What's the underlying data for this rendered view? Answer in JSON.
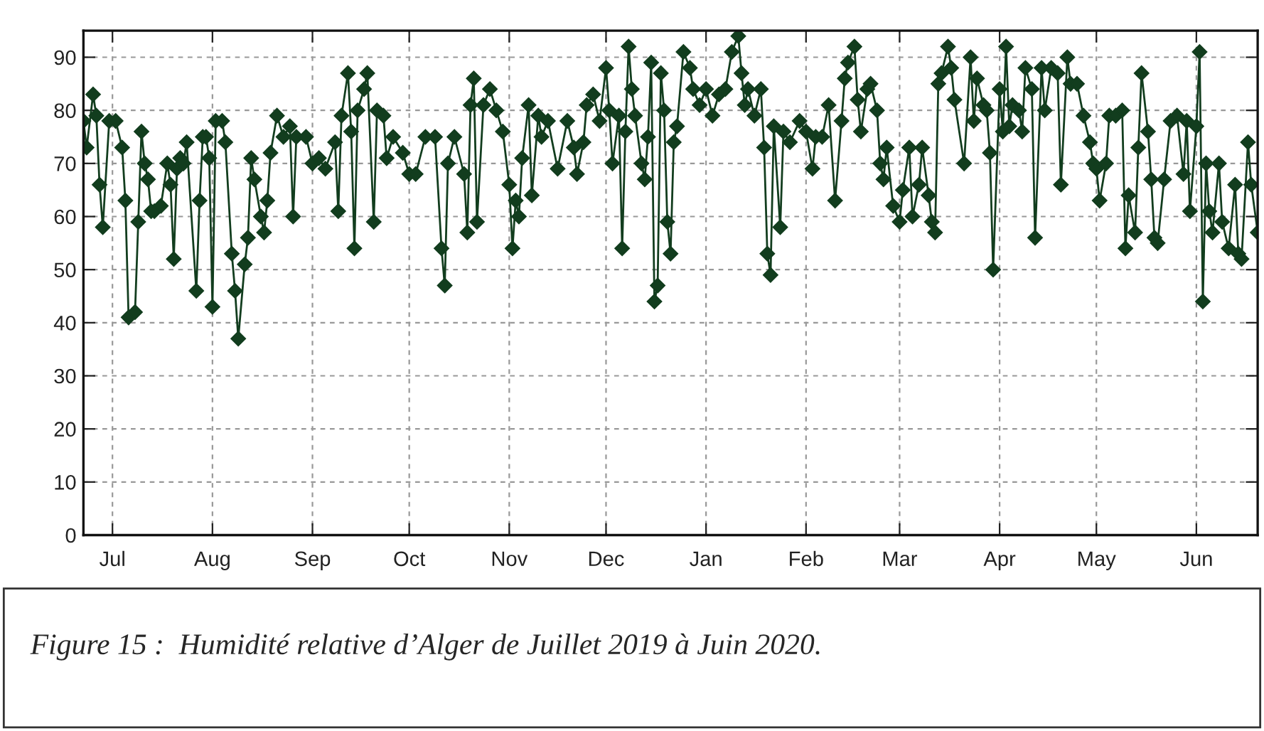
{
  "chart_data": {
    "type": "line",
    "x": [
      "2019-06-22",
      "2019-06-23",
      "2019-06-25",
      "2019-06-26",
      "2019-06-27",
      "2019-06-28",
      "2019-06-30",
      "2019-07-02",
      "2019-07-04",
      "2019-07-05",
      "2019-07-06",
      "2019-07-08",
      "2019-07-09",
      "2019-07-10",
      "2019-07-11",
      "2019-07-12",
      "2019-07-13",
      "2019-07-14",
      "2019-07-16",
      "2019-07-18",
      "2019-07-19",
      "2019-07-20",
      "2019-07-21",
      "2019-07-22",
      "2019-07-23",
      "2019-07-24",
      "2019-07-27",
      "2019-07-28",
      "2019-07-29",
      "2019-07-30",
      "2019-07-31",
      "2019-08-01",
      "2019-08-02",
      "2019-08-04",
      "2019-08-05",
      "2019-08-07",
      "2019-08-08",
      "2019-08-09",
      "2019-08-11",
      "2019-08-12",
      "2019-08-13",
      "2019-08-14",
      "2019-08-16",
      "2019-08-17",
      "2019-08-18",
      "2019-08-19",
      "2019-08-21",
      "2019-08-23",
      "2019-08-25",
      "2019-08-26",
      "2019-08-27",
      "2019-08-30",
      "2019-09-01",
      "2019-09-03",
      "2019-09-05",
      "2019-09-08",
      "2019-09-09",
      "2019-09-10",
      "2019-09-12",
      "2019-09-13",
      "2019-09-14",
      "2019-09-15",
      "2019-09-17",
      "2019-09-18",
      "2019-09-20",
      "2019-09-21",
      "2019-09-23",
      "2019-09-24",
      "2019-09-26",
      "2019-09-29",
      "2019-10-01",
      "2019-10-03",
      "2019-10-06",
      "2019-10-09",
      "2019-10-11",
      "2019-10-12",
      "2019-10-13",
      "2019-10-15",
      "2019-10-18",
      "2019-10-19",
      "2019-10-20",
      "2019-10-21",
      "2019-10-22",
      "2019-10-24",
      "2019-10-26",
      "2019-10-28",
      "2019-10-30",
      "2019-11-01",
      "2019-11-02",
      "2019-11-03",
      "2019-11-04",
      "2019-11-05",
      "2019-11-07",
      "2019-11-08",
      "2019-11-10",
      "2019-11-11",
      "2019-11-13",
      "2019-11-16",
      "2019-11-19",
      "2019-11-21",
      "2019-11-22",
      "2019-11-24",
      "2019-11-25",
      "2019-11-27",
      "2019-11-29",
      "2019-12-01",
      "2019-12-02",
      "2019-12-03",
      "2019-12-05",
      "2019-12-06",
      "2019-12-07",
      "2019-12-08",
      "2019-12-09",
      "2019-12-10",
      "2019-12-12",
      "2019-12-13",
      "2019-12-14",
      "2019-12-15",
      "2019-12-16",
      "2019-12-17",
      "2019-12-18",
      "2019-12-19",
      "2019-12-20",
      "2019-12-21",
      "2019-12-22",
      "2019-12-23",
      "2019-12-25",
      "2019-12-27",
      "2019-12-28",
      "2019-12-30",
      "2020-01-01",
      "2020-01-03",
      "2020-01-05",
      "2020-01-07",
      "2020-01-09",
      "2020-01-11",
      "2020-01-12",
      "2020-01-13",
      "2020-01-14",
      "2020-01-16",
      "2020-01-18",
      "2020-01-19",
      "2020-01-20",
      "2020-01-21",
      "2020-01-22",
      "2020-01-24",
      "2020-01-25",
      "2020-01-27",
      "2020-01-30",
      "2020-02-01",
      "2020-02-03",
      "2020-02-04",
      "2020-02-06",
      "2020-02-08",
      "2020-02-10",
      "2020-02-12",
      "2020-02-13",
      "2020-02-14",
      "2020-02-16",
      "2020-02-17",
      "2020-02-18",
      "2020-02-20",
      "2020-02-21",
      "2020-02-23",
      "2020-02-24",
      "2020-02-25",
      "2020-02-26",
      "2020-02-28",
      "2020-03-01",
      "2020-03-02",
      "2020-03-04",
      "2020-03-05",
      "2020-03-07",
      "2020-03-08",
      "2020-03-10",
      "2020-03-11",
      "2020-03-12",
      "2020-03-13",
      "2020-03-14",
      "2020-03-16",
      "2020-03-17",
      "2020-03-18",
      "2020-03-21",
      "2020-03-23",
      "2020-03-24",
      "2020-03-25",
      "2020-03-27",
      "2020-03-28",
      "2020-03-29",
      "2020-03-30",
      "2020-04-01",
      "2020-04-02",
      "2020-04-03",
      "2020-04-04",
      "2020-04-05",
      "2020-04-07",
      "2020-04-08",
      "2020-04-09",
      "2020-04-11",
      "2020-04-12",
      "2020-04-14",
      "2020-04-15",
      "2020-04-17",
      "2020-04-19",
      "2020-04-20",
      "2020-04-22",
      "2020-04-23",
      "2020-04-25",
      "2020-04-27",
      "2020-04-29",
      "2020-04-30",
      "2020-05-01",
      "2020-05-02",
      "2020-05-04",
      "2020-05-05",
      "2020-05-07",
      "2020-05-09",
      "2020-05-10",
      "2020-05-11",
      "2020-05-13",
      "2020-05-14",
      "2020-05-15",
      "2020-05-17",
      "2020-05-18",
      "2020-05-19",
      "2020-05-20",
      "2020-05-22",
      "2020-05-24",
      "2020-05-26",
      "2020-05-28",
      "2020-05-29",
      "2020-05-30",
      "2020-06-01",
      "2020-06-02",
      "2020-06-03",
      "2020-06-04",
      "2020-06-05",
      "2020-06-06",
      "2020-06-08",
      "2020-06-09",
      "2020-06-11",
      "2020-06-13",
      "2020-06-14",
      "2020-06-15",
      "2020-06-17",
      "2020-06-18",
      "2020-06-20"
    ],
    "series": [
      {
        "color": "#123d1e",
        "values": [
          78,
          73,
          83,
          79,
          66,
          58,
          78,
          78,
          73,
          63,
          41,
          42,
          59,
          76,
          70,
          67,
          61,
          61,
          62,
          70,
          66,
          52,
          69,
          71,
          70,
          74,
          46,
          63,
          75,
          75,
          71,
          43,
          78,
          78,
          74,
          53,
          46,
          37,
          51,
          56,
          71,
          67,
          60,
          57,
          63,
          72,
          79,
          75,
          77,
          60,
          75,
          75,
          70,
          71,
          69,
          74,
          61,
          79,
          87,
          76,
          54,
          80,
          84,
          87,
          59,
          80,
          79,
          71,
          75,
          72,
          68,
          68,
          75,
          75,
          54,
          47,
          70,
          75,
          68,
          57,
          81,
          86,
          59,
          81,
          84,
          80,
          76,
          66,
          54,
          63,
          60,
          71,
          81,
          64,
          79,
          75,
          78,
          69,
          78,
          73,
          68,
          74,
          81,
          83,
          78,
          88,
          80,
          70,
          79,
          54,
          76,
          92,
          84,
          79,
          70,
          67,
          75,
          89,
          44,
          47,
          87,
          80,
          59,
          53,
          74,
          77,
          91,
          88,
          84,
          81,
          84,
          79,
          83,
          84,
          91,
          94,
          87,
          81,
          84,
          79,
          84,
          73,
          53,
          49,
          77,
          58,
          76,
          74,
          78,
          76,
          69,
          75,
          75,
          81,
          63,
          78,
          86,
          89,
          92,
          82,
          76,
          84,
          85,
          80,
          70,
          67,
          73,
          62,
          59,
          65,
          73,
          60,
          66,
          73,
          64,
          59,
          57,
          85,
          87,
          92,
          88,
          82,
          70,
          90,
          78,
          86,
          81,
          80,
          72,
          50,
          84,
          76,
          92,
          77,
          81,
          80,
          76,
          88,
          84,
          56,
          88,
          80,
          88,
          87,
          66,
          90,
          85,
          85,
          79,
          74,
          70,
          69,
          63,
          70,
          79,
          79,
          80,
          54,
          64,
          57,
          73,
          87,
          76,
          67,
          56,
          55,
          67,
          78,
          79,
          68,
          78,
          61,
          77,
          91,
          44,
          70,
          61,
          57,
          70,
          59,
          54,
          66,
          53,
          52,
          74,
          66,
          57
        ]
      }
    ],
    "xlim": [
      "2019-06-22",
      "2020-06-20"
    ],
    "xticks": [
      {
        "value": "2019-07-01",
        "label": "Jul"
      },
      {
        "value": "2019-08-01",
        "label": "Aug"
      },
      {
        "value": "2019-09-01",
        "label": "Sep"
      },
      {
        "value": "2019-10-01",
        "label": "Oct"
      },
      {
        "value": "2019-11-01",
        "label": "Nov"
      },
      {
        "value": "2019-12-01",
        "label": "Dec"
      },
      {
        "value": "2020-01-01",
        "label": "Jan"
      },
      {
        "value": "2020-02-01",
        "label": "Feb"
      },
      {
        "value": "2020-03-01",
        "label": "Mar"
      },
      {
        "value": "2020-04-01",
        "label": "Apr"
      },
      {
        "value": "2020-05-01",
        "label": "May"
      },
      {
        "value": "2020-06-01",
        "label": "Jun"
      }
    ],
    "ylim": [
      0,
      95
    ],
    "yticks": [
      0,
      10,
      20,
      30,
      40,
      50,
      60,
      70,
      80,
      90
    ],
    "grid": true,
    "marker": "diamond",
    "line_style": "solid",
    "legend": false,
    "annotations": [
      "Figure 15 :  Humidité relative d’Alger de Juillet 2019 à Juin 2020."
    ]
  }
}
